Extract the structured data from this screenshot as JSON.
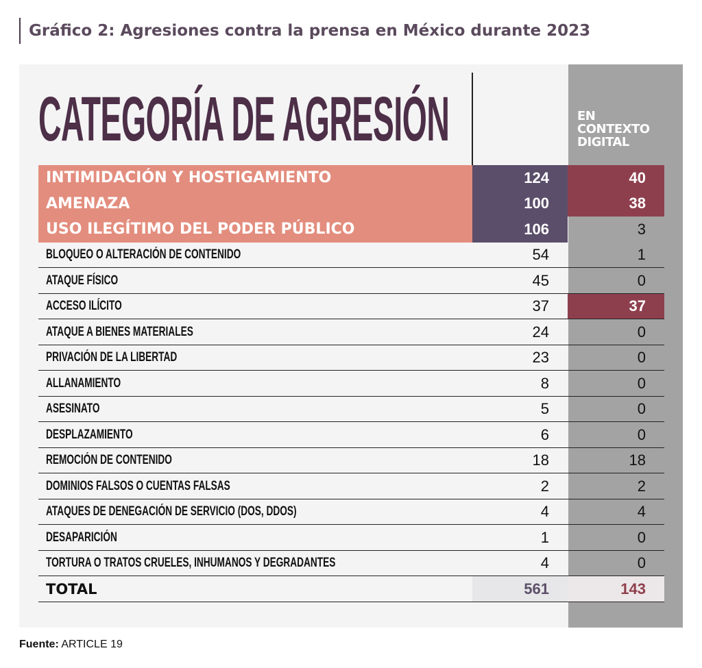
{
  "title": "Gráfico 2: Agresiones contra la prensa en México durante 2023",
  "heading": "CATEGORÍA DE AGRESIÓN",
  "digital_header": "EN\nCONTEXTO\nDIGITAL",
  "source_label": "Fuente:",
  "source_value": "ARTICLE 19",
  "colors": {
    "highlight_label": "#e38d7e",
    "highlight_total": "#5b4e6a",
    "highlight_digital": "#8e3f4d",
    "digital_column": "#a3a3a3",
    "title": "#5b4a5d",
    "heading": "#4d2f48"
  },
  "chart_data": {
    "type": "table",
    "columns": [
      "CATEGORÍA DE AGRESIÓN",
      "",
      "EN CONTEXTO DIGITAL"
    ],
    "rows": [
      {
        "label": "INTIMIDACIÓN Y HOSTIGAMIENTO",
        "total": "124",
        "digital": "40",
        "highlight": true,
        "digital_highlight": true
      },
      {
        "label": "AMENAZA",
        "total": "100",
        "digital": "38",
        "highlight": true,
        "digital_highlight": true
      },
      {
        "label": "USO ILEGÍTIMO DEL PODER PÚBLICO",
        "total": "106",
        "digital": "3",
        "highlight": true,
        "digital_highlight": false
      },
      {
        "label": "BLOQUEO O ALTERACIÓN DE CONTENIDO",
        "total": "54",
        "digital": "1",
        "highlight": false,
        "digital_highlight": false
      },
      {
        "label": "ATAQUE FÍSICO",
        "total": "45",
        "digital": "0",
        "highlight": false,
        "digital_highlight": false
      },
      {
        "label": "ACCESO ILÍCITO",
        "total": "37",
        "digital": "37",
        "highlight": false,
        "digital_highlight": true
      },
      {
        "label": "ATAQUE A BIENES MATERIALES",
        "total": "24",
        "digital": "0",
        "highlight": false,
        "digital_highlight": false
      },
      {
        "label": "PRIVACIÓN DE LA LIBERTAD",
        "total": "23",
        "digital": "0",
        "highlight": false,
        "digital_highlight": false
      },
      {
        "label": "ALLANAMIENTO",
        "total": "8",
        "digital": "0",
        "highlight": false,
        "digital_highlight": false
      },
      {
        "label": "ASESINATO",
        "total": "5",
        "digital": "0",
        "highlight": false,
        "digital_highlight": false
      },
      {
        "label": "DESPLAZAMIENTO",
        "total": "6",
        "digital": "0",
        "highlight": false,
        "digital_highlight": false
      },
      {
        "label": "REMOCIÓN DE CONTENIDO",
        "total": "18",
        "digital": "18",
        "highlight": false,
        "digital_highlight": false
      },
      {
        "label": "DOMINIOS FALSOS O CUENTAS FALSAS",
        "total": "2",
        "digital": "2",
        "highlight": false,
        "digital_highlight": false
      },
      {
        "label": "ATAQUES DE DENEGACIÓN DE SERVICIO (DOS, DDOS)",
        "total": "4",
        "digital": "4",
        "highlight": false,
        "digital_highlight": false
      },
      {
        "label": "DESAPARICIÓN",
        "total": "1",
        "digital": "0",
        "highlight": false,
        "digital_highlight": false
      },
      {
        "label": "TORTURA O TRATOS CRUELES, INHUMANOS Y DEGRADANTES",
        "total": "4",
        "digital": "0",
        "highlight": false,
        "digital_highlight": false
      }
    ],
    "total_row": {
      "label": "TOTAL",
      "total": "561",
      "digital": "143"
    }
  }
}
